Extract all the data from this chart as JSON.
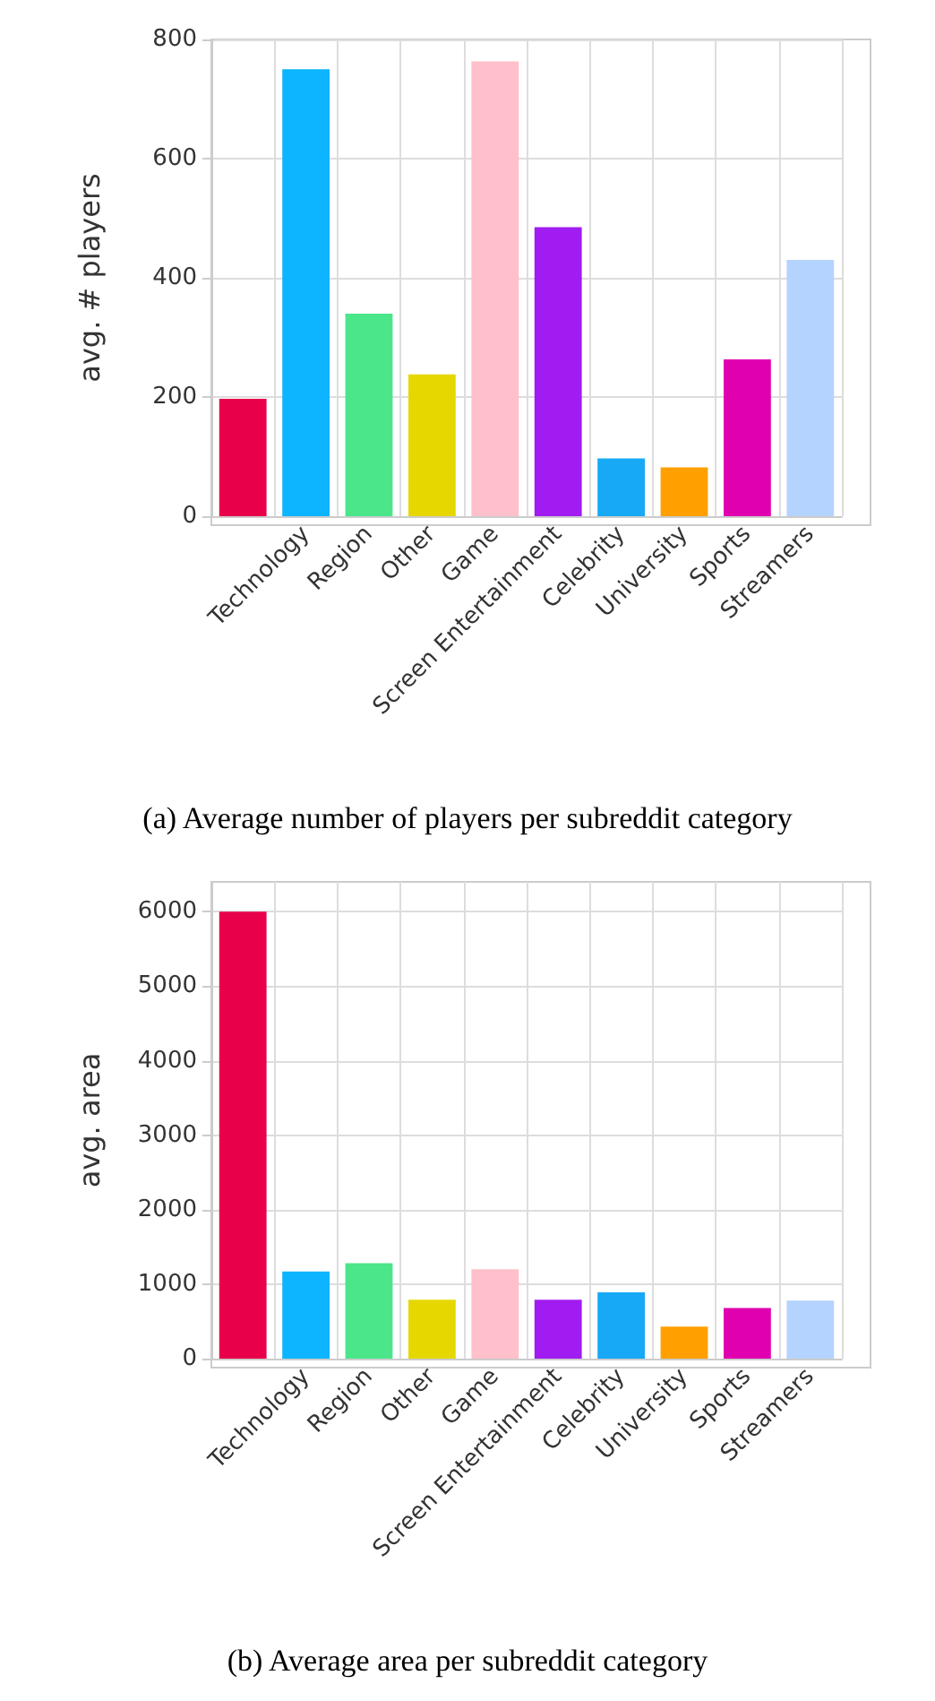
{
  "chart_data": [
    {
      "type": "bar",
      "categories": [
        null,
        "Technology",
        "Region",
        "Other",
        "Game",
        "Screen Entertainment",
        "Celebrity",
        "University",
        "Sports",
        "Streamers"
      ],
      "values": [
        197,
        750,
        340,
        238,
        763,
        485,
        97,
        82,
        263,
        430
      ],
      "colors": [
        "#e8004b",
        "#0db4ff",
        "#4be68a",
        "#e6d700",
        "#ffbfcb",
        "#a01cf0",
        "#17a9f5",
        "#ffa000",
        "#e000b0",
        "#b5d3ff"
      ],
      "ylabel": "avg. # players",
      "ylim": [
        0,
        800
      ],
      "yticks": [
        0,
        200,
        400,
        600,
        800
      ],
      "grid": true,
      "annotations": [
        "(a) Average number of players per subreddit category"
      ]
    },
    {
      "type": "bar",
      "categories": [
        null,
        "Technology",
        "Region",
        "Other",
        "Game",
        "Screen Entertainment",
        "Celebrity",
        "University",
        "Sports",
        "Streamers"
      ],
      "values": [
        6000,
        1170,
        1280,
        790,
        1200,
        790,
        890,
        430,
        680,
        780
      ],
      "colors": [
        "#e8004b",
        "#0db4ff",
        "#4be68a",
        "#e6d700",
        "#ffbfcb",
        "#a01cf0",
        "#17a9f5",
        "#ffa000",
        "#e000b0",
        "#b5d3ff"
      ],
      "ylabel": "avg. area",
      "ylim": [
        0,
        6400
      ],
      "yticks": [
        0,
        1000,
        2000,
        3000,
        4000,
        5000,
        6000
      ],
      "grid": true,
      "annotations": [
        "(b) Average area per subreddit category"
      ]
    }
  ]
}
